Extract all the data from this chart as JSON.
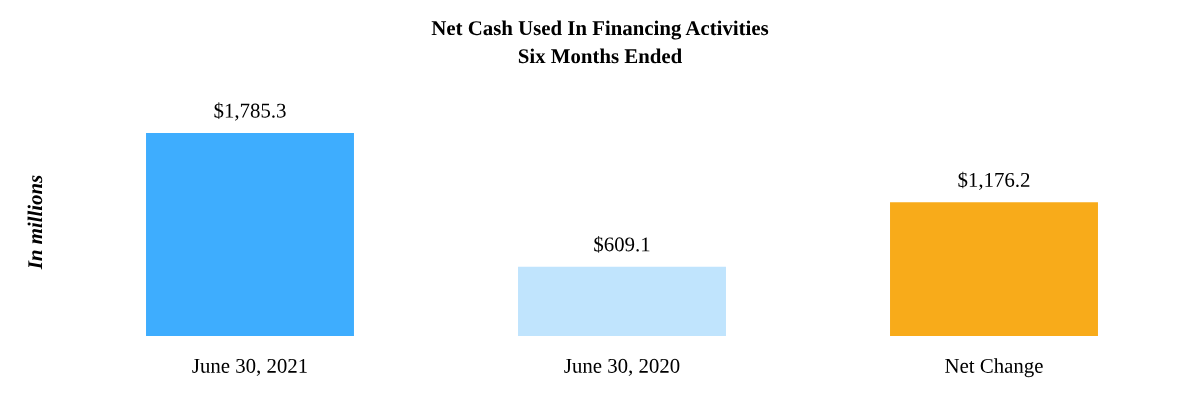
{
  "chart_data": {
    "type": "bar",
    "title": "Net Cash Used In Financing Activities",
    "subtitle": "Six Months Ended",
    "ylabel": "In millions",
    "categories": [
      "June 30, 2021",
      "June 30, 2020",
      "Net Change"
    ],
    "values": [
      1785.3,
      609.1,
      1176.2
    ],
    "colors": [
      "#3eadfe",
      "#c0e4fd",
      "#f8ab1a"
    ],
    "value_labels": [
      "$1,785.3",
      "$609.1",
      "$1,176.2"
    ],
    "grid": false,
    "legend": false
  }
}
